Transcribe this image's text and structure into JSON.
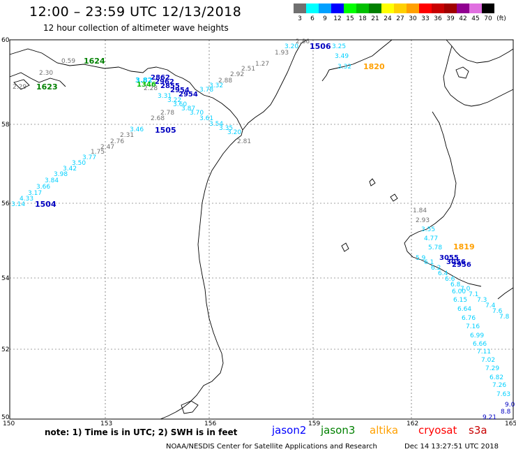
{
  "title": "12:00 – 23:59 UTC 12/13/2018",
  "subtitle": "12 hour collection of altimeter wave heights",
  "color_scale": {
    "unit": "(ft)",
    "steps": [
      {
        "label": "3",
        "color": "#707070"
      },
      {
        "label": "6",
        "color": "#00ffff"
      },
      {
        "label": "9",
        "color": "#00a0ff"
      },
      {
        "label": "12",
        "color": "#0000ff"
      },
      {
        "label": "15",
        "color": "#00ff00"
      },
      {
        "label": "18",
        "color": "#00c000"
      },
      {
        "label": "21",
        "color": "#008000"
      },
      {
        "label": "24",
        "color": "#ffff00"
      },
      {
        "label": "27",
        "color": "#ffd000"
      },
      {
        "label": "30",
        "color": "#ffa000"
      },
      {
        "label": "33",
        "color": "#ff0000"
      },
      {
        "label": "36",
        "color": "#c80000"
      },
      {
        "label": "39",
        "color": "#a00000"
      },
      {
        "label": "42",
        "color": "#900090"
      },
      {
        "label": "45",
        "color": "#e070e0"
      },
      {
        "label": "70",
        "color": "#000000"
      }
    ]
  },
  "axes": {
    "lat_labels": [
      "60",
      "58",
      "56",
      "54",
      "52",
      "50"
    ],
    "lon_labels": [
      "150",
      "153",
      "156",
      "159",
      "162",
      "165"
    ]
  },
  "passes": [
    {
      "time": "1624",
      "color": "#008000"
    },
    {
      "time": "1623",
      "color": "#008000"
    },
    {
      "time": "1505",
      "color": "#0000c0"
    },
    {
      "time": "1504",
      "color": "#0000c0"
    },
    {
      "time": "1506",
      "color": "#0000c0"
    },
    {
      "time": "1820",
      "color": "#ffa000"
    },
    {
      "time": "1819",
      "color": "#ffa000"
    }
  ],
  "track_values": {
    "nw_gray": [
      "0.59",
      "2.30",
      "2.29"
    ],
    "north_gray": [
      "2.86",
      "1.93",
      "1.27",
      "2.51",
      "2.92",
      "2.88",
      "3.32",
      "3.78"
    ],
    "north_cyan": [
      "3.20",
      "3.25",
      "3.49",
      "3.32"
    ],
    "sw_gray": [
      "2.78",
      "2.68",
      "2.31",
      "2.76",
      "2.47",
      "1.75",
      "2.81"
    ],
    "sw_cyan": [
      "3.46",
      "3.77",
      "3.50",
      "3.42",
      "3.98",
      "3.84",
      "3.66",
      "3.17",
      "4.33",
      "3.14"
    ],
    "east_gray": [
      "1.84",
      "2.93"
    ],
    "east_cyan": [
      "3.55",
      "4.77",
      "5.78",
      "6.15",
      "6.64",
      "6.76",
      "7.16",
      "6.99",
      "6.66",
      "7.11",
      "7.02",
      "7.29",
      "6.82",
      "7.26",
      "7.63",
      "9.21",
      "6.00"
    ]
  },
  "note": "note:  1) Time is in UTC;  2) SWH is in feet",
  "satellites": [
    {
      "name": "jason2",
      "color": "#0000ff"
    },
    {
      "name": "jason3",
      "color": "#008000"
    },
    {
      "name": "altika",
      "color": "#ffa000"
    },
    {
      "name": "cryosat",
      "color": "#ff0000"
    },
    {
      "name": "s3a",
      "color": "#c80000"
    }
  ],
  "credit": "NOAA/NESDIS Center for Satellite Applications and Research",
  "timestamp": "Dec 14 13:27:51 UTC 2018"
}
